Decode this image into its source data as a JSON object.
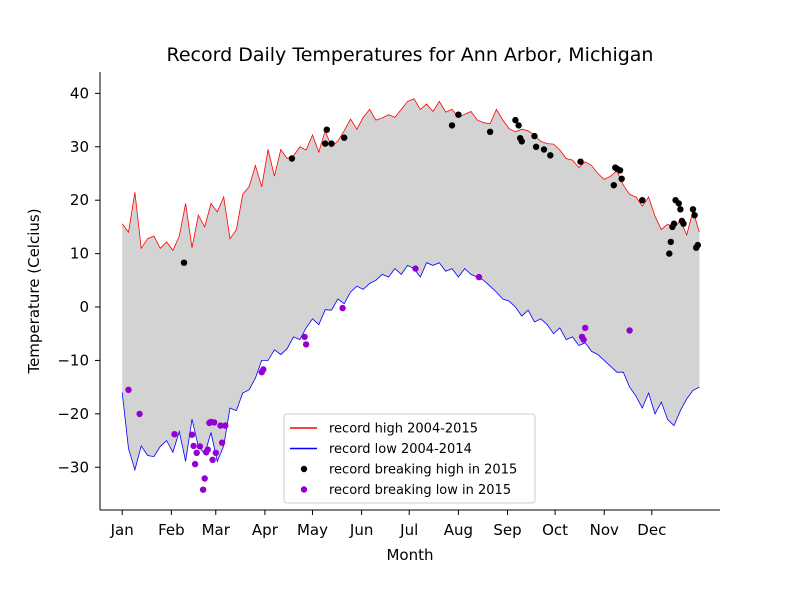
{
  "chart_data": {
    "type": "line",
    "title": "Record Daily Temperatures for Ann Arbor, Michigan",
    "xlabel": "Month",
    "ylabel": "Temperature (Celcius)",
    "xlim": [
      -13,
      378
    ],
    "ylim": [
      -38,
      44
    ],
    "month_ticks": [
      {
        "label": "Jan",
        "day": 1
      },
      {
        "label": "Feb",
        "day": 32
      },
      {
        "label": "Mar",
        "day": 60
      },
      {
        "label": "Apr",
        "day": 91
      },
      {
        "label": "May",
        "day": 121
      },
      {
        "label": "Jun",
        "day": 152
      },
      {
        "label": "Jul",
        "day": 182
      },
      {
        "label": "Aug",
        "day": 213
      },
      {
        "label": "Sep",
        "day": 244
      },
      {
        "label": "Oct",
        "day": 274
      },
      {
        "label": "Nov",
        "day": 305
      },
      {
        "label": "Dec",
        "day": 335
      }
    ],
    "y_ticks": [
      -30,
      -20,
      -10,
      0,
      10,
      20,
      30,
      40
    ],
    "fill_between": {
      "color": "#d3d3d3"
    },
    "legend": {
      "placement": "lower-center",
      "entries": [
        {
          "label": "record high 2004-2015",
          "marker": "line",
          "color": "#ff0000"
        },
        {
          "label": "record low 2004-2014",
          "marker": "line",
          "color": "#0000ff"
        },
        {
          "label": "record breaking high in 2015",
          "marker": "dot",
          "color": "#000000"
        },
        {
          "label": "record breaking low in 2015",
          "marker": "dot",
          "color": "#9400d3"
        }
      ]
    },
    "series": [
      {
        "name": "record high 2004-2015",
        "color": "#ff0000",
        "x": [
          1,
          5,
          9,
          13,
          17,
          21,
          25,
          29,
          33,
          37,
          41,
          45,
          49,
          53,
          57,
          61,
          65,
          69,
          73,
          77,
          81,
          85,
          89,
          93,
          97,
          101,
          105,
          109,
          113,
          117,
          121,
          125,
          129,
          133,
          137,
          141,
          145,
          149,
          153,
          157,
          161,
          165,
          169,
          173,
          177,
          181,
          185,
          189,
          193,
          197,
          201,
          205,
          209,
          213,
          217,
          221,
          225,
          229,
          233,
          237,
          241,
          245,
          249,
          253,
          257,
          261,
          265,
          269,
          273,
          277,
          281,
          285,
          289,
          293,
          297,
          301,
          305,
          309,
          313,
          317,
          321,
          325,
          329,
          333,
          337,
          341,
          345,
          349,
          353,
          357,
          361,
          365
        ],
        "y": [
          15.6,
          14,
          21.5,
          11,
          12.8,
          13.3,
          11,
          12.2,
          10.6,
          13.3,
          19.4,
          11.1,
          17.2,
          15,
          19.4,
          17.8,
          20.6,
          12.8,
          14.5,
          21.1,
          22.5,
          26.5,
          22.5,
          29.5,
          24.5,
          29.5,
          27.8,
          28.3,
          30,
          29.4,
          32.2,
          29,
          33,
          30,
          31.1,
          33,
          35.2,
          33.3,
          35.5,
          37,
          35,
          35.4,
          36,
          35.5,
          37,
          38.5,
          39,
          37,
          38,
          36.6,
          38.5,
          36.5,
          37,
          35.5,
          36.1,
          36.6,
          35,
          34.5,
          34.3,
          37,
          35,
          33.4,
          32.8,
          33.3,
          33,
          32.2,
          31,
          30.6,
          30.5,
          29.4,
          27.8,
          27.5,
          26.1,
          27.2,
          26.5,
          25,
          23.9,
          24.5,
          25.5,
          22.8,
          21.1,
          20.6,
          18.9,
          20.6,
          17,
          14.5,
          15.5,
          14.8,
          16.2,
          13.5,
          18,
          14
        ]
      },
      {
        "name": "record low 2004-2014",
        "color": "#0000ff",
        "x": [
          1,
          5,
          9,
          13,
          17,
          21,
          25,
          29,
          33,
          37,
          41,
          45,
          49,
          53,
          57,
          61,
          65,
          69,
          73,
          77,
          81,
          85,
          89,
          93,
          97,
          101,
          105,
          109,
          113,
          117,
          121,
          125,
          129,
          133,
          137,
          141,
          145,
          149,
          153,
          157,
          161,
          165,
          169,
          173,
          177,
          181,
          185,
          189,
          193,
          197,
          201,
          205,
          209,
          213,
          217,
          221,
          225,
          229,
          233,
          237,
          241,
          245,
          249,
          253,
          257,
          261,
          265,
          269,
          273,
          277,
          281,
          285,
          289,
          293,
          297,
          301,
          305,
          309,
          313,
          317,
          321,
          325,
          329,
          333,
          337,
          341,
          345,
          349,
          353,
          357,
          361,
          365
        ],
        "y": [
          -16,
          -26.5,
          -30.5,
          -26,
          -27.8,
          -28,
          -26.1,
          -25,
          -27.2,
          -23.3,
          -28.9,
          -21,
          -26.1,
          -27.5,
          -23.5,
          -28.9,
          -26,
          -18.9,
          -19.4,
          -16.1,
          -15.5,
          -13.3,
          -10,
          -10,
          -8,
          -8.9,
          -7.8,
          -5.6,
          -6.1,
          -3.9,
          -2.2,
          -3.3,
          -0.5,
          -0.6,
          1.5,
          0.6,
          2.8,
          3.9,
          3.3,
          4.4,
          5,
          6.1,
          5.6,
          7.2,
          6.1,
          7.8,
          7.2,
          5.6,
          8.3,
          7.8,
          8.3,
          6.7,
          7.2,
          5.6,
          7.2,
          6.1,
          5.6,
          5,
          3.9,
          2.8,
          1.5,
          1.1,
          0,
          -1.7,
          -0.6,
          -2.8,
          -2.2,
          -3.3,
          -5,
          -3.9,
          -6.1,
          -5.6,
          -7.2,
          -6.7,
          -8.3,
          -8.9,
          -10,
          -11.1,
          -12.2,
          -12.2,
          -15,
          -16.7,
          -18.9,
          -16.1,
          -20,
          -17.8,
          -21.1,
          -22.2,
          -19.4,
          -17.2,
          -15.6,
          -15
        ]
      },
      {
        "name": "record breaking high in 2015",
        "color": "#000000",
        "type": "scatter",
        "x": [
          40,
          108,
          129,
          130,
          133,
          141,
          209,
          213,
          233,
          249,
          251,
          252,
          253,
          261,
          262,
          267,
          271,
          290,
          311,
          312,
          313,
          315,
          316,
          329,
          346,
          347,
          348,
          349,
          350,
          352,
          353,
          354,
          355,
          361,
          362,
          363,
          364
        ],
        "y": [
          8.3,
          27.8,
          30.6,
          33.2,
          30.6,
          31.7,
          34,
          36,
          32.8,
          35,
          34,
          31.6,
          31,
          32,
          30,
          29.5,
          28.4,
          27.2,
          22.8,
          26.1,
          25.9,
          25.6,
          24,
          20,
          10,
          12.2,
          15,
          15.6,
          20,
          19.4,
          18.3,
          16.1,
          15.6,
          18.3,
          17.2,
          11.1,
          11.6
        ]
      },
      {
        "name": "record breaking low in 2015",
        "color": "#9400d3",
        "type": "scatter",
        "x": [
          5,
          12,
          34,
          45,
          46,
          47,
          48,
          50,
          52,
          53,
          54,
          55,
          56,
          57,
          58,
          59,
          60,
          63,
          64,
          66,
          89,
          90,
          116,
          117,
          140,
          186,
          226,
          291,
          292,
          293,
          321
        ],
        "y": [
          -15.5,
          -20,
          -23.8,
          -23.9,
          -26,
          -29.4,
          -27.3,
          -26.1,
          -34.2,
          -32.1,
          -27.2,
          -26.7,
          -21.7,
          -21.5,
          -28.6,
          -21.6,
          -27.3,
          -22.2,
          -25.4,
          -22.2,
          -12.2,
          -11.7,
          -5.6,
          -7,
          -0.2,
          7.2,
          5.6,
          -5.6,
          -6.1,
          -3.9,
          -4.4
        ]
      }
    ]
  }
}
